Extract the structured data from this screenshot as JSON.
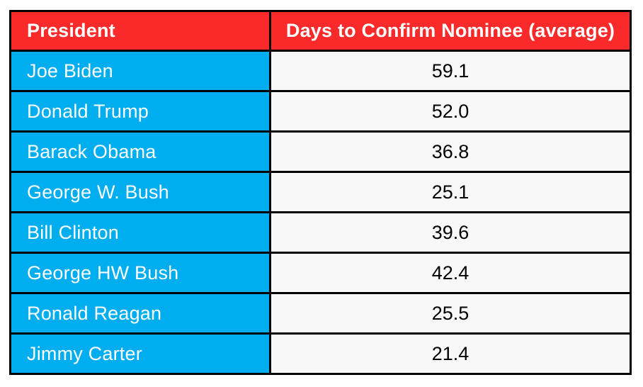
{
  "chart_data": {
    "type": "table",
    "title": "",
    "columns": [
      "President",
      "Days to Confirm Nominee (average)"
    ],
    "categories": [
      "Joe Biden",
      "Donald Trump",
      "Barack Obama",
      "George W. Bush",
      "Bill Clinton",
      "George HW Bush",
      "Ronald Reagan",
      "Jimmy Carter"
    ],
    "values": [
      59.1,
      52.0,
      36.8,
      25.1,
      39.6,
      42.4,
      25.5,
      21.4
    ]
  },
  "table": {
    "header": {
      "president": "President",
      "days": "Days to Confirm Nominee (average)"
    },
    "rows": [
      {
        "president": "Joe Biden",
        "days": "59.1"
      },
      {
        "president": "Donald Trump",
        "days": "52.0"
      },
      {
        "president": "Barack Obama",
        "days": "36.8"
      },
      {
        "president": "George W. Bush",
        "days": "25.1"
      },
      {
        "president": "Bill Clinton",
        "days": "39.6"
      },
      {
        "president": "George HW Bush",
        "days": "42.4"
      },
      {
        "president": "Ronald Reagan",
        "days": "25.5"
      },
      {
        "president": "Jimmy Carter",
        "days": "21.4"
      }
    ]
  },
  "colors": {
    "header_bg": "#fb2a2a",
    "name_bg": "#00aeef",
    "value_bg": "#f8f8f8",
    "border": "#000000",
    "header_text": "#ffffff",
    "name_text": "#ffffff",
    "value_text": "#000000"
  }
}
